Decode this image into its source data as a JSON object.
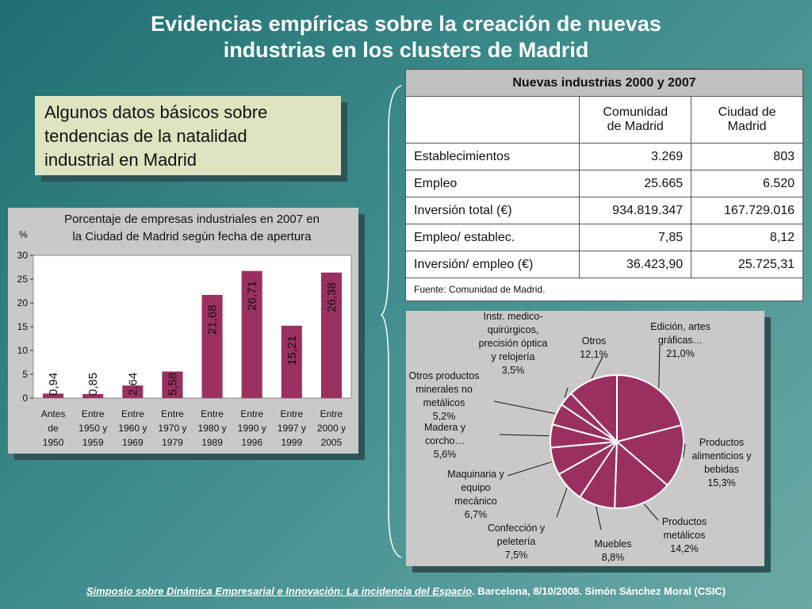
{
  "title_line1": "Evidencias empíricas sobre la creación de nuevas",
  "title_line2": "industrias en los clusters de Madrid",
  "info_box_lines": [
    "Algunos datos básicos sobre",
    "tendencias de la natalidad",
    "industrial en Madrid"
  ],
  "table": {
    "title": "Nuevas industrias 2000 y 2007",
    "col1": [
      "Comunidad",
      "de Madrid"
    ],
    "col2": [
      "Ciudad de",
      "Madrid"
    ],
    "rows": [
      {
        "label": "Establecimientos",
        "c1": "3.269",
        "c2": "803"
      },
      {
        "label": "Empleo",
        "c1": "25.665",
        "c2": "6.520"
      },
      {
        "label": "Inversión total (€)",
        "c1": "934.819.347",
        "c2": "167.729.016"
      },
      {
        "label": "Empleo/ establec.",
        "c1": "7,85",
        "c2": "8,12"
      },
      {
        "label": "Inversión/ empleo (€)",
        "c1": "36.423,90",
        "c2": "25.725,31"
      }
    ],
    "source": "Fuente: Comunidad de Madrid."
  },
  "footer": {
    "link_text": "Simposio sobre Dinámica Empresarial e Innovación: La incidencia del Espacio",
    "rest": ". Barcelona, 8/10/2008. Simón Sánchez Moral (CSIC)"
  },
  "chart_data": [
    {
      "type": "bar",
      "title_lines": [
        "Porcentaje de empresas industriales en 2007 en",
        "la Ciudad de Madrid según fecha de apertura"
      ],
      "ylabel": "%",
      "ylim": [
        0,
        30
      ],
      "yticks": [
        0,
        5,
        10,
        15,
        20,
        25,
        30
      ],
      "color": "#9a3060",
      "categories": [
        [
          "Antes",
          "de",
          "1950"
        ],
        [
          "Entre",
          "1950 y",
          "1959"
        ],
        [
          "Entre",
          "1960 y",
          "1969"
        ],
        [
          "Entre",
          "1970 y",
          "1979"
        ],
        [
          "Entre",
          "1980 y",
          "1989"
        ],
        [
          "Entre",
          "1990 y",
          "1996"
        ],
        [
          "Entre",
          "1997 y",
          "1999"
        ],
        [
          "Entre",
          "2000 y",
          "2005"
        ]
      ],
      "values": [
        0.94,
        0.85,
        2.64,
        5.58,
        21.68,
        26.71,
        15.21,
        26.38
      ],
      "value_labels": [
        "0,94",
        "0,85",
        "2,64",
        "5,58",
        "21,68",
        "26,71",
        "15,21",
        "26,38"
      ]
    },
    {
      "type": "pie",
      "color": "#9a3060",
      "slices": [
        {
          "lines": [
            "Edición, artes",
            "gráficas…",
            "21,0%"
          ],
          "value": 21.0
        },
        {
          "lines": [
            "Productos",
            "alimenticios y",
            "bebidas",
            "15,3%"
          ],
          "value": 15.3
        },
        {
          "lines": [
            "Productos",
            "metálicos",
            "14,2%"
          ],
          "value": 14.2
        },
        {
          "lines": [
            "Muebles",
            "8,8%"
          ],
          "value": 8.8
        },
        {
          "lines": [
            "Confección y",
            "peletería",
            "7,5%"
          ],
          "value": 7.5
        },
        {
          "lines": [
            "Maquinaria y",
            "equipo",
            "mecánico",
            "6,7%"
          ],
          "value": 6.7
        },
        {
          "lines": [
            "Madera y",
            "corcho…",
            "5,6%"
          ],
          "value": 5.6
        },
        {
          "lines": [
            "Otros productos",
            "minerales no",
            "metálicos",
            "5,2%"
          ],
          "value": 5.2
        },
        {
          "lines": [
            "Instr. medico-",
            "quirúrgicos,",
            "precisión óptica",
            "y relojería",
            "3,5%"
          ],
          "value": 3.5
        },
        {
          "lines": [
            "Otros",
            "12,1%"
          ],
          "value": 12.1
        }
      ]
    }
  ]
}
